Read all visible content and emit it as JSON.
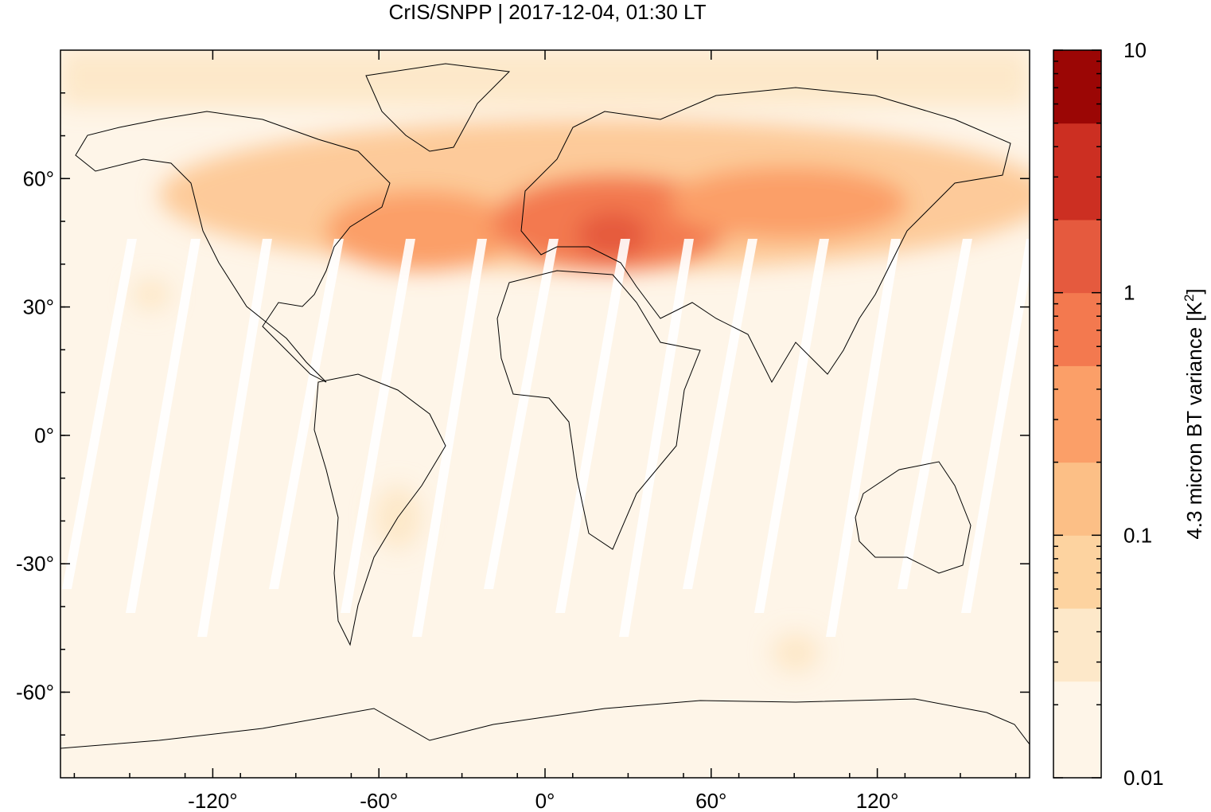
{
  "chart_data": {
    "type": "heatmap",
    "title": "CrIS/SNPP | 2017-12-04, 01:30 LT",
    "x_ticks": [
      "-120°",
      "-60°",
      "0°",
      "60°",
      "120°"
    ],
    "x_tick_values": [
      -120,
      -60,
      0,
      60,
      120
    ],
    "y_ticks": [
      "60°",
      "30°",
      "0°",
      "-30°",
      "-60°"
    ],
    "y_tick_values": [
      60,
      30,
      0,
      -30,
      -60
    ],
    "xlim": [
      -175,
      175
    ],
    "ylim": [
      -80,
      90
    ],
    "colorbar": {
      "label": "4.3 micron BT variance [K",
      "label_unit_exp": "2",
      "label_close": "]",
      "scale": "log",
      "range": [
        0.01,
        10
      ],
      "tick_labels": [
        "10",
        "1",
        "0.1",
        "0.01"
      ],
      "tick_values": [
        10,
        1,
        0.1,
        0.01
      ],
      "levels": [
        {
          "from": 0.01,
          "to": 0.025,
          "color": "#fef5e8"
        },
        {
          "from": 0.025,
          "to": 0.05,
          "color": "#fde8c9"
        },
        {
          "from": 0.05,
          "to": 0.1,
          "color": "#fdd3a0"
        },
        {
          "from": 0.1,
          "to": 0.2,
          "color": "#fcbf86"
        },
        {
          "from": 0.2,
          "to": 0.5,
          "color": "#fb9f68"
        },
        {
          "from": 0.5,
          "to": 1,
          "color": "#f3794f"
        },
        {
          "from": 1,
          "to": 2,
          "color": "#e55a3e"
        },
        {
          "from": 2,
          "to": 5,
          "color": "#cc2f22"
        },
        {
          "from": 5,
          "to": 10,
          "color": "#9b0605"
        }
      ]
    },
    "colors": {
      "background": "#fef5e8",
      "high_band": "#f3794f",
      "mid_band": "#fcbf86",
      "gap": "#ffffff"
    }
  }
}
